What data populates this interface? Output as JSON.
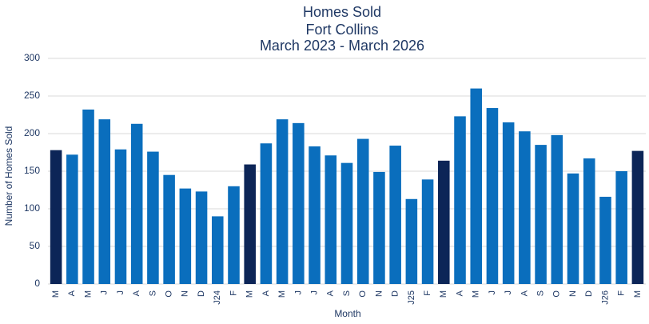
{
  "chart_data": {
    "type": "bar",
    "title": [
      "Homes Sold",
      "Fort Collins",
      "March 2023 - March 2026"
    ],
    "x_label": "Month",
    "y_label": "Number of Homes Sold",
    "categories": [
      "M",
      "A",
      "M",
      "J",
      "J",
      "A",
      "S",
      "O",
      "N",
      "D",
      "J24",
      "F",
      "M",
      "A",
      "M",
      "J",
      "J",
      "A",
      "S",
      "O",
      "N",
      "D",
      "J25",
      "F",
      "M",
      "A",
      "M",
      "J",
      "J",
      "A",
      "S",
      "O",
      "N",
      "D",
      "J26",
      "F",
      "M"
    ],
    "values": [
      178,
      172,
      232,
      219,
      179,
      213,
      176,
      145,
      127,
      123,
      90,
      130,
      159,
      187,
      219,
      214,
      183,
      171,
      161,
      193,
      149,
      184,
      113,
      139,
      164,
      223,
      260,
      234,
      215,
      203,
      185,
      198,
      147,
      167,
      116,
      150,
      177
    ],
    "colors": [
      "#0c2557",
      "#0a6ebd",
      "#0a6ebd",
      "#0a6ebd",
      "#0a6ebd",
      "#0a6ebd",
      "#0a6ebd",
      "#0a6ebd",
      "#0a6ebd",
      "#0a6ebd",
      "#0a6ebd",
      "#0a6ebd",
      "#0c2557",
      "#0a6ebd",
      "#0a6ebd",
      "#0a6ebd",
      "#0a6ebd",
      "#0a6ebd",
      "#0a6ebd",
      "#0a6ebd",
      "#0a6ebd",
      "#0a6ebd",
      "#0a6ebd",
      "#0a6ebd",
      "#0c2557",
      "#0a6ebd",
      "#0a6ebd",
      "#0a6ebd",
      "#0a6ebd",
      "#0a6ebd",
      "#0a6ebd",
      "#0a6ebd",
      "#0a6ebd",
      "#0a6ebd",
      "#0a6ebd",
      "#0a6ebd",
      "#0c2557"
    ],
    "ylim": [
      0,
      300
    ],
    "yticks": [
      0,
      50,
      100,
      150,
      200,
      250,
      300
    ],
    "grid": true
  }
}
